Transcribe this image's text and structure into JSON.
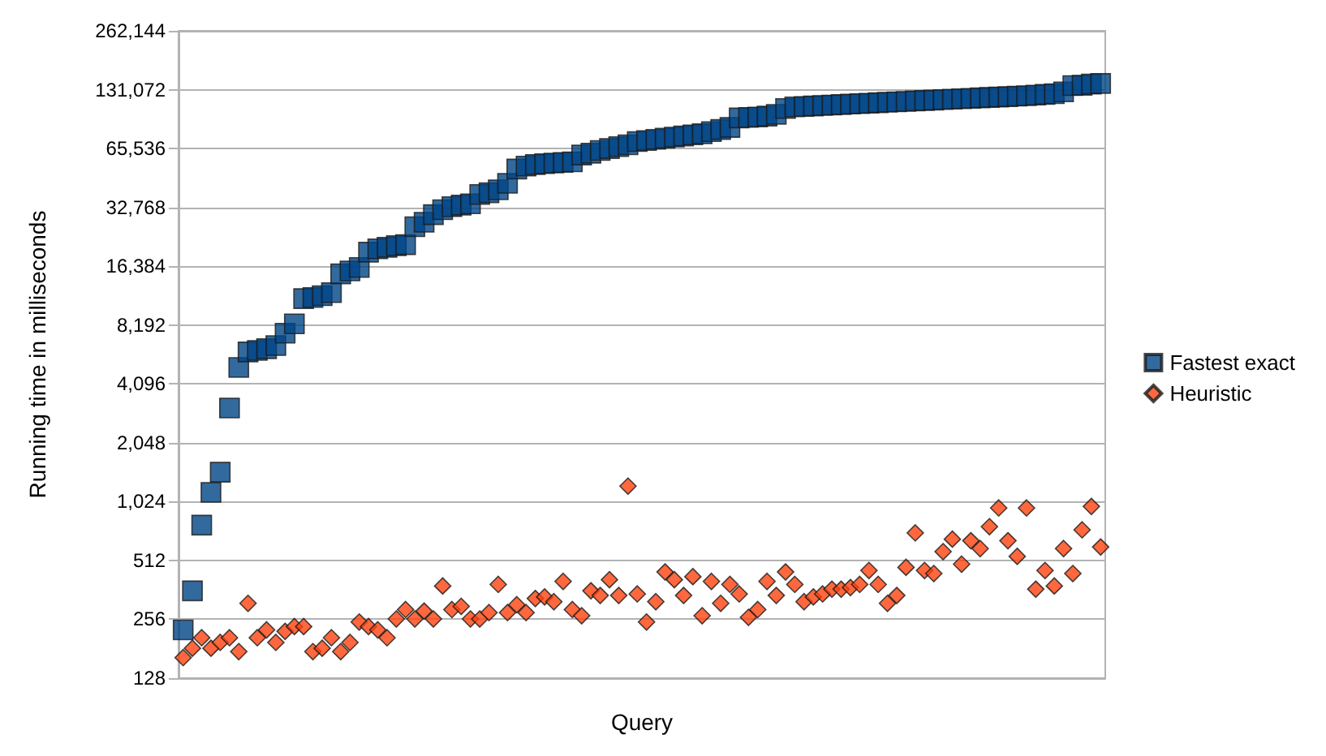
{
  "chart_data": {
    "type": "scatter",
    "xlabel": "Query",
    "ylabel": "Running time in milliseconds",
    "categories": [
      null,
      null,
      null,
      null,
      null,
      null,
      null,
      null,
      null,
      null,
      null,
      null,
      null,
      null,
      null,
      null,
      null,
      null,
      null,
      null,
      null,
      null,
      null,
      null,
      null,
      null,
      null,
      null,
      null,
      null,
      null,
      null,
      null,
      null,
      null,
      null,
      null,
      null,
      null,
      null,
      null,
      null,
      null,
      null,
      null,
      null,
      null,
      null,
      null,
      null,
      null,
      null,
      null,
      null,
      null,
      null,
      null,
      null,
      null,
      null,
      null,
      null,
      null,
      null,
      null,
      null,
      null,
      null,
      null,
      null,
      null,
      null,
      null,
      null,
      null,
      null,
      null,
      null,
      null,
      null,
      null,
      null,
      null,
      null,
      null,
      null,
      null,
      null,
      null,
      null,
      null,
      null,
      null,
      null,
      null,
      null,
      null,
      null,
      null,
      null
    ],
    "series": [
      {
        "name": "Fastest exact",
        "color": "#004586",
        "marker": "square",
        "values": [
          226,
          358,
          776,
          1142,
          1448,
          3085,
          4970,
          5970,
          6080,
          6200,
          6430,
          7440,
          8310,
          11190,
          11340,
          11580,
          12000,
          14970,
          15500,
          16130,
          19330,
          20100,
          20480,
          20860,
          21120,
          26100,
          27500,
          30080,
          31870,
          33030,
          33660,
          34180,
          38140,
          38910,
          40320,
          43520,
          51460,
          53250,
          54270,
          54800,
          55200,
          55600,
          56000,
          60670,
          62000,
          64000,
          65536,
          67000,
          68500,
          71170,
          72000,
          73000,
          74000,
          75000,
          76000,
          77000,
          78000,
          80000,
          82000,
          84000,
          94000,
          94500,
          95000,
          96000,
          98000,
          105000,
          107000,
          107600,
          108200,
          108800,
          109400,
          110000,
          110600,
          111200,
          111800,
          112400,
          113000,
          113600,
          114200,
          114800,
          115400,
          116000,
          116600,
          117200,
          117800,
          118400,
          119000,
          119600,
          120200,
          120800,
          121400,
          122000,
          123000,
          124000,
          125000,
          127800,
          137500,
          138000,
          140000,
          141000
        ]
      },
      {
        "name": "Heuristic",
        "color": "#ff420e",
        "marker": "diamond",
        "values": [
          163,
          182,
          206,
          182,
          195,
          206,
          175,
          309,
          206,
          226,
          195,
          222,
          235,
          235,
          175,
          182,
          206,
          175,
          195,
          248,
          235,
          226,
          206,
          257,
          287,
          257,
          282,
          257,
          379,
          287,
          298,
          257,
          257,
          277,
          386,
          277,
          304,
          277,
          327,
          333,
          315,
          400,
          287,
          267,
          358,
          339,
          408,
          339,
          1229,
          345,
          248,
          315,
          447,
          408,
          339,
          423,
          267,
          400,
          309,
          386,
          345,
          262,
          287,
          400,
          339,
          447,
          386,
          315,
          333,
          345,
          365,
          365,
          372,
          386,
          455,
          386,
          309,
          339,
          472,
          708,
          455,
          439,
          568,
          658,
          490,
          646,
          589,
          762,
          950,
          646,
          537,
          950,
          365,
          455,
          379,
          589,
          439,
          734,
          967,
          600
        ]
      }
    ],
    "log": "y",
    "ylim": [
      128,
      262144
    ],
    "yticks": [
      128,
      256,
      512,
      {
        "value": 1024,
        "label": "1,024"
      },
      {
        "value": 2048,
        "label": "2,048"
      },
      {
        "value": 4096,
        "label": "4,096"
      },
      {
        "value": 8192,
        "label": "8,192"
      },
      {
        "value": 16384,
        "label": "16,384"
      },
      {
        "value": 32768,
        "label": "32,768"
      },
      {
        "value": 65536,
        "label": "65,536"
      },
      {
        "value": 131072,
        "label": "131,072"
      },
      {
        "value": 262144,
        "label": "262,144"
      }
    ],
    "grid": "y",
    "legend": "right",
    "tick_labels": "y"
  }
}
